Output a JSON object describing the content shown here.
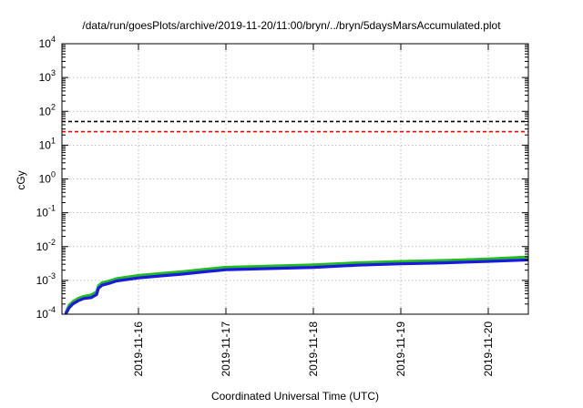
{
  "chart_data": {
    "type": "line",
    "title": "/data/run/goesPlots/archive/2019-11-20/11:00/bryn/../bryn/5daysMarsAccumulated.plot",
    "xlabel": "Coordinated Universal Time (UTC)",
    "ylabel": "cGy",
    "y_scale": "log",
    "ylim": [
      0.0001,
      10000
    ],
    "xlim": [
      "2019-11-15 03:00",
      "2019-11-20 11:00"
    ],
    "x_tick_labels": [
      "2019-11-16",
      "2019-11-17",
      "2019-11-18",
      "2019-11-19",
      "2019-11-20"
    ],
    "y_tick_labels": [
      {
        "base": "10",
        "exp": "-4"
      },
      {
        "base": "10",
        "exp": "-3"
      },
      {
        "base": "10",
        "exp": "-2"
      },
      {
        "base": "10",
        "exp": "-1"
      },
      {
        "base": "10",
        "exp": "0"
      },
      {
        "base": "10",
        "exp": "1"
      },
      {
        "base": "10",
        "exp": "2"
      },
      {
        "base": "10",
        "exp": "3"
      },
      {
        "base": "10",
        "exp": "4"
      }
    ],
    "grid": true,
    "reference_lines": [
      {
        "y": 50,
        "color": "#000000",
        "style": "dashed"
      },
      {
        "y": 25,
        "color": "#ff0000",
        "style": "dashed"
      }
    ],
    "series": [
      {
        "color": "#22bb22",
        "x": [
          "2019-11-15 04:00",
          "2019-11-15 05:00",
          "2019-11-15 06:00",
          "2019-11-15 07:30",
          "2019-11-15 09:00",
          "2019-11-15 11:00",
          "2019-11-15 12:30",
          "2019-11-15 13:00",
          "2019-11-15 14:00",
          "2019-11-15 16:00",
          "2019-11-15 18:00",
          "2019-11-16 00:00",
          "2019-11-16 06:00",
          "2019-11-16 12:00",
          "2019-11-16 18:00",
          "2019-11-17 00:00",
          "2019-11-17 12:00",
          "2019-11-18 00:00",
          "2019-11-18 12:00",
          "2019-11-19 00:00",
          "2019-11-19 12:00",
          "2019-11-20 00:00",
          "2019-11-20 11:00"
        ],
        "values": [
          0.0001,
          0.00017,
          0.000215,
          0.00027,
          0.00031,
          0.00034,
          0.00042,
          0.00063,
          0.00078,
          0.00088,
          0.00103,
          0.00128,
          0.00146,
          0.00165,
          0.00193,
          0.00223,
          0.00242,
          0.00262,
          0.00303,
          0.00333,
          0.00357,
          0.00393,
          0.00452
        ]
      },
      {
        "color": "#1a1adf",
        "x": [
          "2019-11-15 04:00",
          "2019-11-15 05:00",
          "2019-11-15 06:00",
          "2019-11-15 07:30",
          "2019-11-15 09:00",
          "2019-11-15 11:00",
          "2019-11-15 12:30",
          "2019-11-15 13:00",
          "2019-11-15 14:00",
          "2019-11-15 16:00",
          "2019-11-15 18:00",
          "2019-11-16 00:00",
          "2019-11-16 06:00",
          "2019-11-16 12:00",
          "2019-11-16 18:00",
          "2019-11-17 00:00",
          "2019-11-17 12:00",
          "2019-11-18 00:00",
          "2019-11-18 12:00",
          "2019-11-19 00:00",
          "2019-11-19 12:00",
          "2019-11-20 00:00",
          "2019-11-20 11:00"
        ],
        "values": [
          0.0001,
          0.000155,
          0.0002,
          0.00025,
          0.00029,
          0.00031,
          0.00038,
          0.00058,
          0.00072,
          0.00082,
          0.00096,
          0.00118,
          0.00135,
          0.00153,
          0.00179,
          0.00206,
          0.00224,
          0.00243,
          0.00281,
          0.00309,
          0.00331,
          0.00364,
          0.00404
        ]
      }
    ]
  }
}
